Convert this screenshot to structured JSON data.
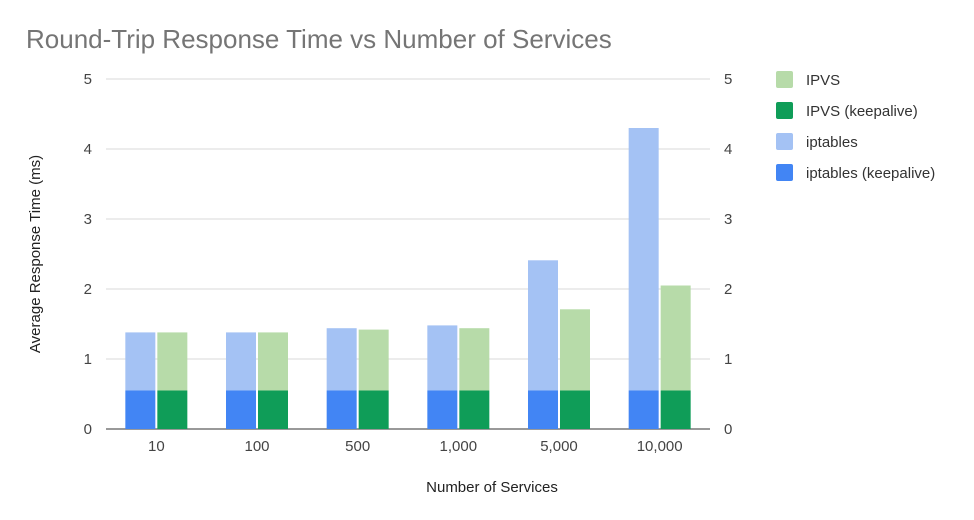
{
  "chart_data": {
    "type": "bar",
    "title": "Round-Trip Response Time vs Number of Services",
    "xlabel": "Number of Services",
    "ylabel": "Average Response Time (ms)",
    "ylim": [
      0,
      5
    ],
    "yticks": [
      "0",
      "1",
      "2",
      "3",
      "4",
      "5"
    ],
    "grid": true,
    "legend_position": "right",
    "categories": [
      "10",
      "100",
      "500",
      "1,000",
      "5,000",
      "10,000"
    ],
    "stacks": [
      {
        "name": "iptables",
        "position": "left",
        "segments": [
          {
            "name": "iptables (keepalive)",
            "color": "#4285f4",
            "values": [
              0.55,
              0.55,
              0.55,
              0.55,
              0.55,
              0.55
            ]
          },
          {
            "name": "iptables",
            "color": "#a4c2f4",
            "values": [
              0.83,
              0.83,
              0.89,
              0.93,
              1.86,
              3.75
            ]
          }
        ]
      },
      {
        "name": "IPVS",
        "position": "right",
        "segments": [
          {
            "name": "IPVS (keepalive)",
            "color": "#0f9d58",
            "values": [
              0.55,
              0.55,
              0.55,
              0.55,
              0.55,
              0.55
            ]
          },
          {
            "name": "IPVS",
            "color": "#b7dba9",
            "values": [
              0.83,
              0.83,
              0.87,
              0.89,
              1.16,
              1.5
            ]
          }
        ]
      }
    ],
    "legend": [
      {
        "label": "IPVS",
        "color": "#b7dba9"
      },
      {
        "label": "IPVS (keepalive)",
        "color": "#0f9d58"
      },
      {
        "label": "iptables",
        "color": "#a4c2f4"
      },
      {
        "label": "iptables (keepalive)",
        "color": "#4285f4"
      }
    ]
  }
}
